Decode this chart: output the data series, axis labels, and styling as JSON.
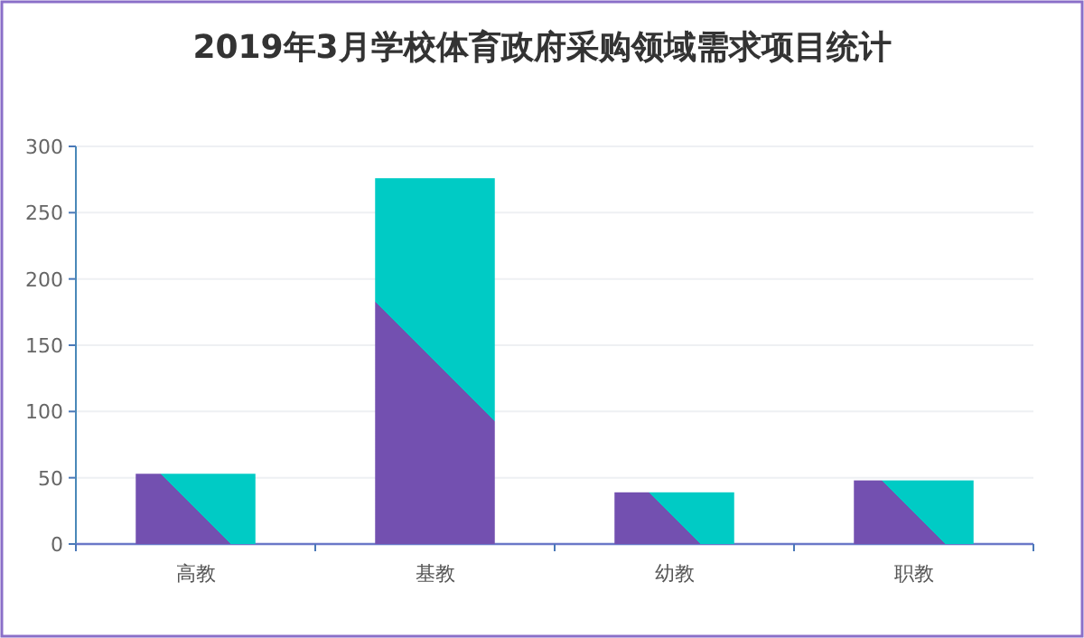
{
  "chart_data": {
    "type": "bar",
    "title": "2019年3月学校体育政府采购领域需求项目统计",
    "categories": [
      "高教",
      "基教",
      "幼教",
      "职教"
    ],
    "values": [
      53,
      276,
      39,
      48
    ],
    "color": "#7350b0",
    "ylim": [
      0,
      300
    ],
    "yticks": [
      0,
      50,
      100,
      150,
      200,
      250,
      300
    ],
    "grid": "y"
  }
}
